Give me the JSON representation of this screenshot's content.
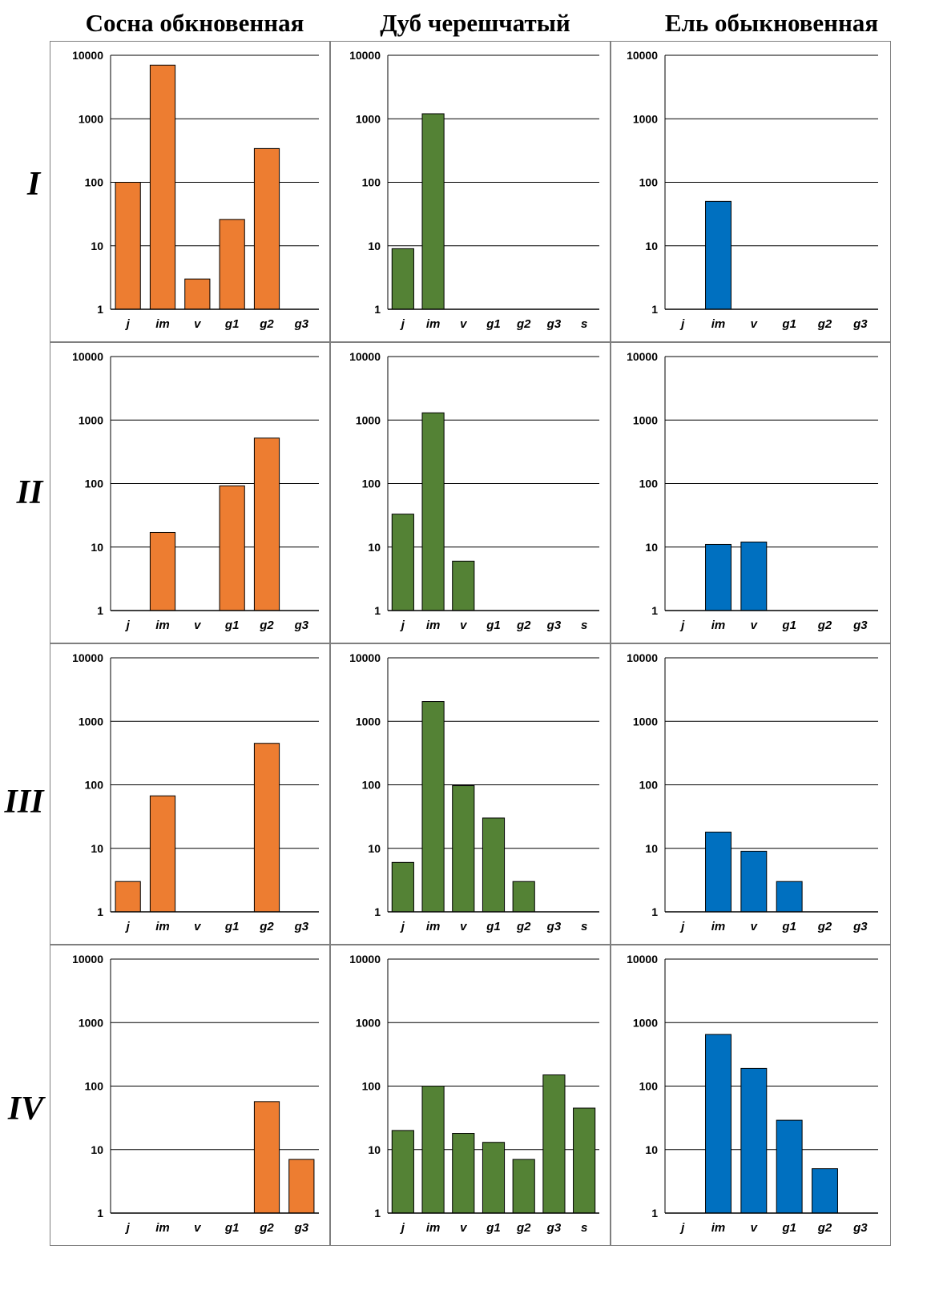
{
  "column_titles": [
    "Сосна обкновенная",
    "Дуб черешчатый",
    "Ель обыкновенная"
  ],
  "row_labels": [
    "I",
    "II",
    "III",
    "IV"
  ],
  "colors": {
    "pine": "#ED7D31",
    "oak": "#548235",
    "spruce": "#0070C0",
    "bar_outline": "#000000",
    "grid": "#000000"
  },
  "chart_data": [
    {
      "type": "bar",
      "row": "I",
      "species": "Сосна обкновенная",
      "y_scale": "log",
      "ylim": [
        1,
        10000
      ],
      "y_ticks": [
        "1",
        "10",
        "100",
        "1000",
        "10000"
      ],
      "grid": true,
      "categories": [
        "j",
        "im",
        "v",
        "g1",
        "g2",
        "g3"
      ],
      "values": [
        100,
        7000,
        3,
        26,
        340,
        1
      ]
    },
    {
      "type": "bar",
      "row": "I",
      "species": "Дуб черешчатый",
      "y_scale": "log",
      "ylim": [
        1,
        10000
      ],
      "y_ticks": [
        "1",
        "10",
        "100",
        "1000",
        "10000"
      ],
      "grid": true,
      "categories": [
        "j",
        "im",
        "v",
        "g1",
        "g2",
        "g3",
        "s"
      ],
      "values": [
        9,
        1200,
        1,
        1,
        1,
        1,
        1
      ]
    },
    {
      "type": "bar",
      "row": "I",
      "species": "Ель обыкновенная",
      "y_scale": "log",
      "ylim": [
        1,
        10000
      ],
      "y_ticks": [
        "1",
        "10",
        "100",
        "1000",
        "10000"
      ],
      "grid": true,
      "categories": [
        "j",
        "im",
        "v",
        "g1",
        "g2",
        "g3"
      ],
      "values": [
        1,
        50,
        1,
        1,
        1,
        1
      ]
    },
    {
      "type": "bar",
      "row": "II",
      "species": "Сосна обкновенная",
      "y_scale": "log",
      "ylim": [
        1,
        10000
      ],
      "y_ticks": [
        "1",
        "10",
        "100",
        "1000",
        "10000"
      ],
      "grid": true,
      "categories": [
        "j",
        "im",
        "v",
        "g1",
        "g2",
        "g3"
      ],
      "values": [
        1,
        17,
        1,
        92,
        520,
        1
      ]
    },
    {
      "type": "bar",
      "row": "II",
      "species": "Дуб черешчатый",
      "y_scale": "log",
      "ylim": [
        1,
        10000
      ],
      "y_ticks": [
        "1",
        "10",
        "100",
        "1000",
        "10000"
      ],
      "grid": true,
      "categories": [
        "j",
        "im",
        "v",
        "g1",
        "g2",
        "g3",
        "s"
      ],
      "values": [
        33,
        1300,
        6,
        1,
        1,
        1,
        1
      ]
    },
    {
      "type": "bar",
      "row": "II",
      "species": "Ель обыкновенная",
      "y_scale": "log",
      "ylim": [
        1,
        10000
      ],
      "y_ticks": [
        "1",
        "10",
        "100",
        "1000",
        "10000"
      ],
      "grid": true,
      "categories": [
        "j",
        "im",
        "v",
        "g1",
        "g2",
        "g3"
      ],
      "values": [
        1,
        11,
        12,
        1,
        1,
        1
      ]
    },
    {
      "type": "bar",
      "row": "III",
      "species": "Сосна обкновенная",
      "y_scale": "log",
      "ylim": [
        1,
        10000
      ],
      "y_ticks": [
        "1",
        "10",
        "100",
        "1000",
        "10000"
      ],
      "grid": true,
      "categories": [
        "j",
        "im",
        "v",
        "g1",
        "g2",
        "g3"
      ],
      "values": [
        3,
        67,
        1,
        1,
        450,
        1
      ]
    },
    {
      "type": "bar",
      "row": "III",
      "species": "Дуб черешчатый",
      "y_scale": "log",
      "ylim": [
        1,
        10000
      ],
      "y_ticks": [
        "1",
        "10",
        "100",
        "1000",
        "10000"
      ],
      "grid": true,
      "categories": [
        "j",
        "im",
        "v",
        "g1",
        "g2",
        "g3",
        "s"
      ],
      "values": [
        6,
        2050,
        97,
        30,
        3,
        1,
        1
      ]
    },
    {
      "type": "bar",
      "row": "III",
      "species": "Ель обыкновенная",
      "y_scale": "log",
      "ylim": [
        1,
        10000
      ],
      "y_ticks": [
        "1",
        "10",
        "100",
        "1000",
        "10000"
      ],
      "grid": true,
      "categories": [
        "j",
        "im",
        "v",
        "g1",
        "g2",
        "g3"
      ],
      "values": [
        1,
        18,
        9,
        3,
        1,
        1
      ]
    },
    {
      "type": "bar",
      "row": "IV",
      "species": "Сосна обкновенная",
      "y_scale": "log",
      "ylim": [
        1,
        10000
      ],
      "y_ticks": [
        "1",
        "10",
        "100",
        "1000",
        "10000"
      ],
      "grid": true,
      "categories": [
        "j",
        "im",
        "v",
        "g1",
        "g2",
        "g3"
      ],
      "values": [
        1,
        1,
        1,
        1,
        57,
        7
      ]
    },
    {
      "type": "bar",
      "row": "IV",
      "species": "Дуб черешчатый",
      "y_scale": "log",
      "ylim": [
        1,
        10000
      ],
      "y_ticks": [
        "1",
        "10",
        "100",
        "1000",
        "10000"
      ],
      "grid": true,
      "categories": [
        "j",
        "im",
        "v",
        "g1",
        "g2",
        "g3",
        "s"
      ],
      "values": [
        20,
        100,
        18,
        13,
        7,
        150,
        45
      ]
    },
    {
      "type": "bar",
      "row": "IV",
      "species": "Ель обыкновенная",
      "y_scale": "log",
      "ylim": [
        1,
        10000
      ],
      "y_ticks": [
        "1",
        "10",
        "100",
        "1000",
        "10000"
      ],
      "grid": true,
      "categories": [
        "j",
        "im",
        "v",
        "g1",
        "g2",
        "g3"
      ],
      "values": [
        1,
        650,
        190,
        29,
        5,
        1
      ]
    }
  ]
}
